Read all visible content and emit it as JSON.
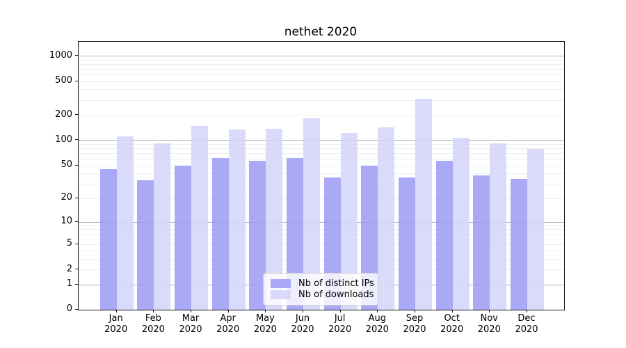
{
  "chart_data": {
    "type": "bar",
    "title": "nethet 2020",
    "x_months": [
      "Jan",
      "Feb",
      "Mar",
      "Apr",
      "May",
      "Jun",
      "Jul",
      "Aug",
      "Sep",
      "Oct",
      "Nov",
      "Dec"
    ],
    "x_year": "2020",
    "series": [
      {
        "name": "Nb of distinct IPs",
        "color": "#9a9af4",
        "values": [
          45,
          33,
          50,
          61,
          57,
          61,
          36,
          50,
          36,
          57,
          38,
          34
        ]
      },
      {
        "name": "Nb of downloads",
        "color": "#d3d3f9",
        "values": [
          110,
          92,
          148,
          133,
          136,
          181,
          123,
          141,
          312,
          106,
          92,
          79
        ]
      }
    ],
    "y_ticks": [
      0,
      1,
      2,
      5,
      10,
      20,
      50,
      100,
      200,
      500,
      1000
    ],
    "ylim": [
      0,
      1460
    ],
    "y_scale": "log10(value+1)",
    "grid": true,
    "legend_position": "lower center inside axes"
  }
}
